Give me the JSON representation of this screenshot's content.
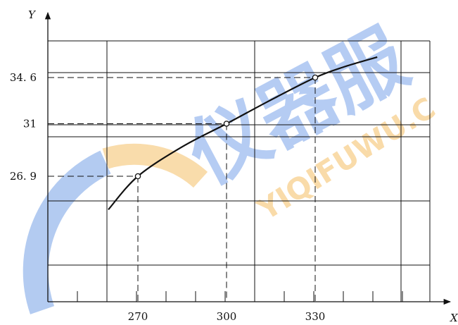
{
  "chart_data": {
    "type": "line",
    "xlabel": "X",
    "ylabel": "Y",
    "xlim": [
      250,
      355
    ],
    "ylim": [
      20,
      37
    ],
    "x_ticks": [
      270,
      300,
      330
    ],
    "y_ticks": [
      26.9,
      31,
      34.6
    ],
    "x_tick_labels": [
      "270",
      "300",
      "330"
    ],
    "y_tick_labels": [
      "26. 9",
      "31",
      "34. 6"
    ],
    "grid": true,
    "series": [
      {
        "x": [
          260,
          270,
          285,
          300,
          315,
          330,
          340,
          351
        ],
        "y": [
          24.3,
          26.9,
          29.2,
          31.0,
          32.85,
          34.6,
          35.45,
          36.2
        ]
      }
    ],
    "marked_points": [
      {
        "x": 270,
        "y": 26.9
      },
      {
        "x": 300,
        "y": 31
      },
      {
        "x": 330,
        "y": 34.6
      }
    ]
  },
  "watermark": {
    "text": "YIQIFUWU.C",
    "chinese": "仪器服",
    "colors": {
      "blue": "#2f6fd6",
      "orange": "#f0a020"
    }
  }
}
